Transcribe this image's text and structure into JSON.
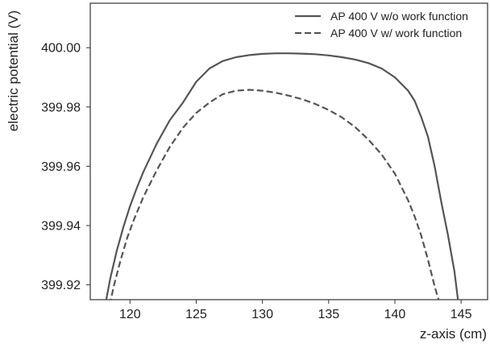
{
  "chart_data": {
    "type": "line",
    "title": "",
    "xlabel": "z-axis (cm)",
    "ylabel": "electric potential (V)",
    "xlim": [
      117,
      147
    ],
    "ylim": [
      399.915,
      400.015
    ],
    "x_ticks": [
      120,
      125,
      130,
      135,
      140,
      145
    ],
    "x_tick_labels": [
      "120",
      "125",
      "130",
      "135",
      "140",
      "145"
    ],
    "y_ticks": [
      399.92,
      399.94,
      399.96,
      399.98,
      400.0
    ],
    "y_tick_labels": [
      "399.92",
      "399.94",
      "399.96",
      "399.98",
      "400.00"
    ],
    "grid": false,
    "legend_position": "top-right",
    "series": [
      {
        "name": "AP 400 V w/o work function",
        "style": "solid",
        "color": "#555555",
        "x": [
          118.0,
          118.5,
          119.0,
          119.5,
          120.0,
          120.5,
          121.0,
          122.0,
          123.0,
          124.0,
          125.0,
          126.0,
          127.0,
          128.0,
          129.0,
          130.0,
          131.0,
          132.0,
          133.0,
          134.0,
          135.0,
          136.0,
          137.0,
          138.0,
          139.0,
          140.0,
          141.0,
          141.5,
          142.0,
          142.5,
          143.0,
          143.5,
          144.0,
          144.5,
          144.9
        ],
        "y": [
          399.91,
          399.922,
          399.9315,
          399.9395,
          399.9465,
          399.9525,
          399.958,
          399.9675,
          399.9755,
          399.9815,
          399.9885,
          399.993,
          399.9955,
          399.9968,
          399.9975,
          399.9979,
          399.9981,
          399.9981,
          399.998,
          399.9978,
          399.9974,
          399.9968,
          399.996,
          399.9948,
          399.993,
          399.99,
          399.9855,
          399.982,
          399.9765,
          399.97,
          399.96,
          399.948,
          399.937,
          399.9245,
          399.91
        ]
      },
      {
        "name": "AP 400 V w/ work function",
        "style": "dashed",
        "color": "#555555",
        "x": [
          118.3,
          118.8,
          119.3,
          119.8,
          120.3,
          121.0,
          122.0,
          123.0,
          124.0,
          125.0,
          126.0,
          127.0,
          128.0,
          129.0,
          130.0,
          131.0,
          132.0,
          133.0,
          134.0,
          135.0,
          136.0,
          137.0,
          138.0,
          139.0,
          140.0,
          141.0,
          141.5,
          142.0,
          142.5,
          143.0,
          143.4,
          143.8
        ],
        "y": [
          399.91,
          399.92,
          399.9285,
          399.936,
          399.942,
          399.9495,
          399.9585,
          399.9665,
          399.973,
          399.978,
          399.9815,
          399.9843,
          399.9855,
          399.9858,
          399.9855,
          399.9848,
          399.9838,
          399.9826,
          399.981,
          399.979,
          399.9765,
          399.9732,
          399.969,
          399.964,
          399.9575,
          399.9485,
          399.943,
          399.9365,
          399.9285,
          399.9195,
          399.9135,
          399.91
        ]
      }
    ]
  }
}
